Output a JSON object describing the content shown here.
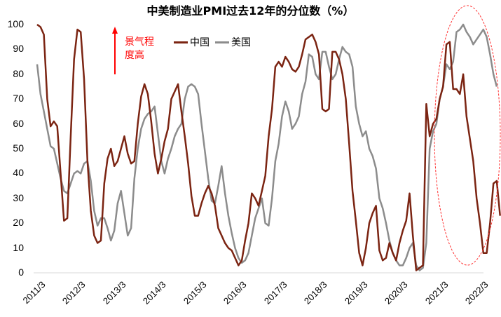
{
  "title": "中美制造业PMI过去12年的分位数（%）",
  "annotation": {
    "line1": "景气程",
    "line2": "度高",
    "color": "#ff0000"
  },
  "legend": [
    {
      "name": "中国",
      "color": "#7b2412"
    },
    {
      "name": "美国",
      "color": "#8c8c8c"
    }
  ],
  "y_ticks": [
    "100",
    "90",
    "80",
    "70",
    "60",
    "50",
    "40",
    "30",
    "20",
    "10",
    "0"
  ],
  "x_ticks": [
    "2011/3",
    "2012/3",
    "2013/3",
    "2014/3",
    "2015/3",
    "2016/3",
    "2017/3",
    "2018/3",
    "2019/3",
    "2020/3",
    "2021/3",
    "2022/3"
  ],
  "chart_data": {
    "type": "line",
    "title": "中美制造业PMI过去12年的分位数（%）",
    "xlabel": "",
    "ylabel": "",
    "ylim": [
      0,
      100
    ],
    "grid": false,
    "legend_position": "top-left inside",
    "x_range": [
      "2011/3",
      "2022/4"
    ],
    "annotations": [
      "景气程度高 (red upward arrow)",
      "red dashed ellipse highlighting 2021/6–2022/4"
    ],
    "series": [
      {
        "name": "中国",
        "color": "#7b2412",
        "values": [
          100,
          99,
          96,
          70,
          59,
          61,
          59,
          40,
          21,
          22,
          55,
          86,
          98,
          97,
          78,
          45,
          25,
          15,
          12,
          13,
          36,
          46,
          50,
          43,
          45,
          50,
          55,
          48,
          44,
          45,
          60,
          71,
          76,
          72,
          61,
          48,
          40,
          46,
          53,
          58,
          70,
          73,
          76,
          65,
          55,
          44,
          31,
          23,
          23,
          28,
          32,
          35,
          32,
          27,
          18,
          15,
          12,
          10,
          9,
          6,
          3,
          5,
          13,
          20,
          32,
          30,
          27,
          33,
          39,
          55,
          66,
          83,
          85,
          83,
          87,
          85,
          82,
          81,
          83,
          88,
          94,
          95,
          96,
          93,
          88,
          66,
          65,
          66,
          89,
          89,
          86,
          80,
          70,
          52,
          33,
          21,
          8,
          3,
          10,
          20,
          24,
          27,
          9,
          5,
          6,
          12,
          8,
          5,
          12,
          17,
          21,
          32,
          15,
          1,
          2,
          3,
          68,
          55,
          60,
          62,
          70,
          75,
          92,
          93,
          74,
          74,
          72,
          80,
          63,
          54,
          45,
          30,
          20,
          8,
          8,
          20,
          36,
          37,
          23
        ],
        "x_start": "2011/3",
        "x_step": "1 month"
      },
      {
        "name": "美国",
        "color": "#8c8c8c",
        "values": [
          84,
          72,
          65,
          58,
          51,
          50,
          44,
          38,
          33,
          32,
          36,
          40,
          41,
          40,
          44,
          45,
          37,
          25,
          19,
          22,
          22,
          18,
          13,
          17,
          28,
          33,
          24,
          15,
          18,
          38,
          50,
          58,
          62,
          64,
          65,
          67,
          56,
          45,
          40,
          46,
          50,
          55,
          58,
          60,
          70,
          75,
          76,
          75,
          72,
          60,
          49,
          38,
          29,
          28,
          35,
          43,
          32,
          23,
          16,
          10,
          6,
          4,
          5,
          8,
          15,
          22,
          26,
          30,
          20,
          19,
          30,
          45,
          52,
          63,
          69,
          65,
          58,
          60,
          63,
          72,
          77,
          88,
          87,
          80,
          78,
          89,
          89,
          83,
          78,
          80,
          86,
          91,
          89,
          88,
          83,
          67,
          60,
          55,
          57,
          50,
          47,
          42,
          30,
          26,
          20,
          13,
          8,
          5,
          3,
          3,
          6,
          10,
          12,
          3,
          1,
          2,
          12,
          50,
          57,
          60,
          70,
          75,
          84,
          82,
          85,
          97,
          98,
          100,
          97,
          95,
          92,
          94,
          96,
          98,
          95,
          88,
          80,
          75
        ],
        "x_start": "2011/3",
        "x_step": "1 month"
      }
    ]
  }
}
